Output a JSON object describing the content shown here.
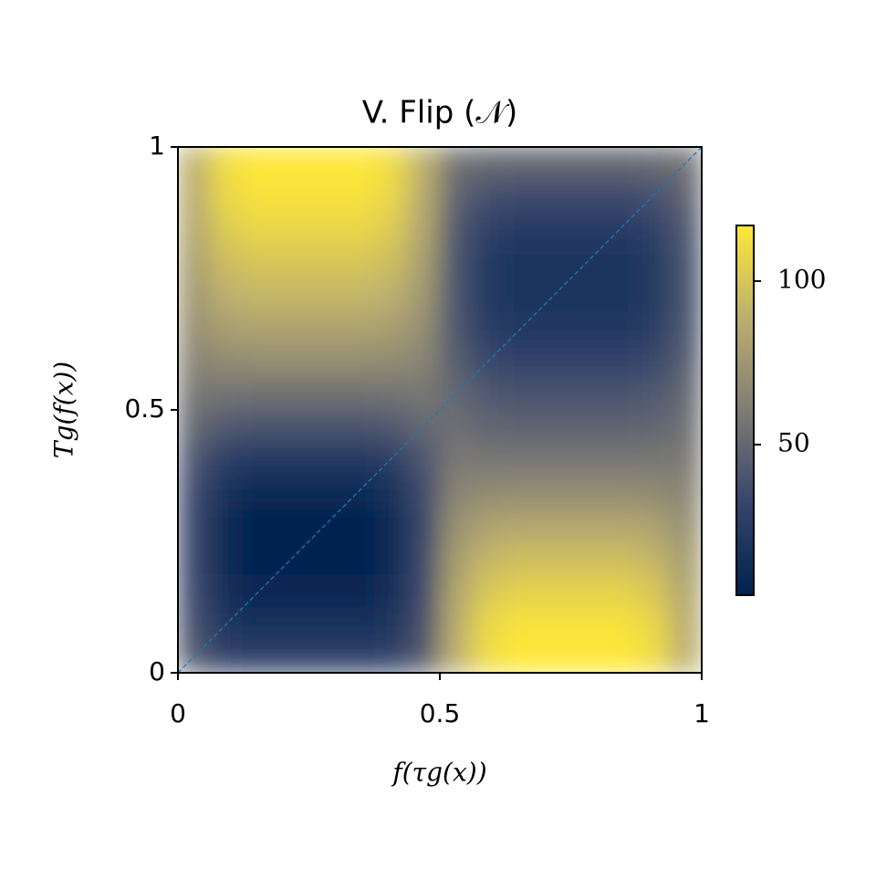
{
  "chart_data": {
    "type": "heatmap",
    "title": "V. Flip (𝒩)",
    "x_label": "f(τg(x))",
    "y_label": "Tg(f(x))",
    "xlim": [
      0,
      1
    ],
    "ylim": [
      0,
      1
    ],
    "xticks": [
      0,
      0.5,
      1
    ],
    "yticks": [
      0,
      0.5,
      1
    ],
    "z": [
      [
        44,
        31,
        28,
        28,
        28,
        28,
        31,
        44,
        89,
        112,
        118,
        118,
        118,
        118,
        112,
        89
      ],
      [
        38,
        20,
        16,
        16,
        16,
        16,
        20,
        38,
        87,
        109,
        114,
        114,
        114,
        114,
        109,
        87
      ],
      [
        35,
        14,
        9,
        9,
        9,
        9,
        14,
        35,
        83,
        101,
        106,
        106,
        106,
        106,
        101,
        83
      ],
      [
        33,
        11,
        6,
        6,
        6,
        6,
        11,
        33,
        78,
        92,
        96,
        96,
        96,
        96,
        92,
        78
      ],
      [
        33,
        11,
        6,
        6,
        6,
        6,
        11,
        33,
        72,
        82,
        84,
        84,
        84,
        84,
        82,
        72
      ],
      [
        35,
        15,
        10,
        10,
        10,
        10,
        15,
        35,
        65,
        69,
        70,
        70,
        70,
        70,
        69,
        65
      ],
      [
        41,
        26,
        22,
        22,
        22,
        22,
        26,
        41,
        59,
        58,
        58,
        58,
        58,
        58,
        58,
        59
      ],
      [
        50,
        42,
        40,
        40,
        40,
        40,
        42,
        50,
        54,
        49,
        48,
        48,
        48,
        48,
        49,
        54
      ],
      [
        58,
        56,
        55,
        55,
        55,
        55,
        56,
        58,
        50,
        42,
        40,
        40,
        40,
        40,
        42,
        50
      ],
      [
        65,
        69,
        70,
        70,
        70,
        70,
        69,
        65,
        45,
        33,
        30,
        30,
        30,
        30,
        33,
        45
      ],
      [
        71,
        80,
        82,
        82,
        82,
        82,
        80,
        71,
        41,
        26,
        22,
        22,
        22,
        22,
        26,
        41
      ],
      [
        76,
        89,
        92,
        92,
        92,
        92,
        89,
        76,
        40,
        23,
        19,
        19,
        19,
        19,
        23,
        40
      ],
      [
        80,
        96,
        100,
        100,
        100,
        100,
        96,
        80,
        40,
        23,
        19,
        19,
        19,
        19,
        23,
        40
      ],
      [
        84,
        103,
        108,
        108,
        108,
        108,
        103,
        84,
        42,
        28,
        24,
        24,
        24,
        24,
        28,
        42
      ],
      [
        87,
        109,
        114,
        114,
        114,
        114,
        109,
        87,
        48,
        38,
        35,
        35,
        35,
        35,
        38,
        48
      ],
      [
        89,
        112,
        118,
        118,
        118,
        118,
        112,
        89,
        55,
        51,
        50,
        50,
        50,
        50,
        51,
        55
      ]
    ],
    "colormap": [
      "#00224e",
      "#35456c",
      "#7f7c75",
      "#bcaf6f",
      "#fee838"
    ],
    "clim": [
      4,
      117
    ],
    "colorbar_ticks": [
      50,
      100
    ],
    "reference_line": {
      "x": [
        0,
        1
      ],
      "y": [
        0,
        1
      ],
      "color": "#1f77b4"
    }
  }
}
